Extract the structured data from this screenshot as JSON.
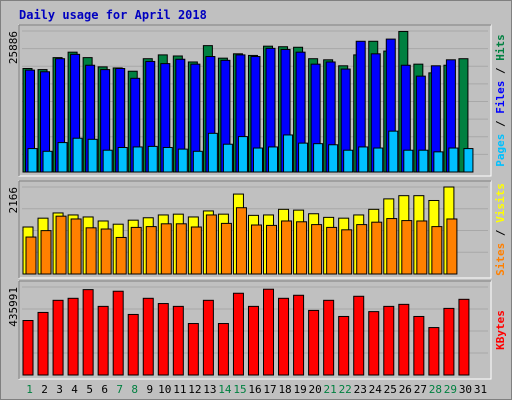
{
  "chart_data": {
    "type": "bar",
    "title": "Daily usage for April 2018",
    "days": [
      "1",
      "2",
      "3",
      "4",
      "5",
      "6",
      "7",
      "8",
      "9",
      "10",
      "11",
      "12",
      "13",
      "14",
      "15",
      "16",
      "17",
      "18",
      "19",
      "20",
      "21",
      "22",
      "23",
      "24",
      "25",
      "26",
      "27",
      "28",
      "29",
      "30",
      "31"
    ],
    "weekend_days": [
      "1",
      "7",
      "8",
      "14",
      "15",
      "21",
      "22",
      "28",
      "29"
    ],
    "panels": [
      {
        "id": "top",
        "max_label": "25886",
        "max_value": 25886,
        "series": [
          {
            "name": "Hits",
            "color": "#008040",
            "values": [
              19000,
              18800,
              21000,
              22000,
              21000,
              19300,
              19100,
              18500,
              20800,
              21500,
              21300,
              20200,
              23200,
              20900,
              21700,
              21400,
              23100,
              23000,
              22900,
              20800,
              20600,
              19500,
              21500,
              24000,
              22200,
              25800,
              19800,
              18200,
              19600,
              20800,
              null
            ]
          },
          {
            "name": "Files",
            "color": "#0000ff",
            "values": [
              18700,
              18400,
              20800,
              21600,
              19600,
              18800,
              19000,
              17200,
              20300,
              19900,
              20700,
              19800,
              21200,
              20500,
              21500,
              21200,
              22700,
              22500,
              22000,
              19800,
              20200,
              18900,
              24000,
              21700,
              24400,
              19600,
              17600,
              19500,
              20600,
              null,
              null
            ]
          },
          {
            "name": "Pages",
            "color": "#00c0ff",
            "values": [
              4300,
              3800,
              5400,
              6200,
              6000,
              4000,
              4500,
              4600,
              4700,
              4500,
              4200,
              3800,
              7100,
              5100,
              6500,
              4400,
              4600,
              6800,
              5300,
              5200,
              5000,
              4000,
              4600,
              4400,
              7500,
              4000,
              4000,
              3700,
              4400,
              4300,
              null
            ]
          }
        ],
        "side_label_parts": [
          {
            "text": "Pages",
            "color": "#00c0ff"
          },
          {
            "text": " / ",
            "color": "#000000"
          },
          {
            "text": "Files",
            "color": "#0000ff"
          },
          {
            "text": " / ",
            "color": "#000000"
          },
          {
            "text": "Hits",
            "color": "#008040"
          }
        ]
      },
      {
        "id": "middle",
        "max_label": "2166",
        "max_value": 2166,
        "series": [
          {
            "name": "Visits",
            "color": "#ffff00",
            "values": [
              1170,
              1390,
              1520,
              1470,
              1420,
              1320,
              1240,
              1340,
              1400,
              1470,
              1490,
              1420,
              1570,
              1490,
              1990,
              1460,
              1470,
              1610,
              1590,
              1500,
              1410,
              1390,
              1470,
              1610,
              1870,
              1950,
              1950,
              1830,
              2166,
              null,
              null
            ]
          },
          {
            "name": "Sites",
            "color": "#ff8000",
            "values": [
              920,
              1080,
              1440,
              1370,
              1150,
              1120,
              910,
              1160,
              1180,
              1250,
              1250,
              1170,
              1470,
              1260,
              1650,
              1220,
              1210,
              1320,
              1300,
              1230,
              1160,
              1100,
              1230,
              1290,
              1380,
              1330,
              1320,
              1180,
              1370,
              null,
              null
            ]
          }
        ],
        "side_label_parts": [
          {
            "text": "Sites",
            "color": "#ff8000"
          },
          {
            "text": " / ",
            "color": "#000000"
          },
          {
            "text": "Visits",
            "color": "#ffff00"
          }
        ]
      },
      {
        "id": "bottom",
        "max_label": "435991",
        "max_value": 435991,
        "series": [
          {
            "name": "KBytes",
            "color": "#ff0000",
            "values": [
              270000,
              310000,
              370000,
              380000,
              423000,
              340000,
              415000,
              300000,
              380000,
              354000,
              340000,
              255000,
              370000,
              255000,
              405000,
              340000,
              425000,
              380000,
              395000,
              320000,
              370000,
              290000,
              390000,
              314000,
              340000,
              350000,
              290000,
              235000,
              330000,
              375000,
              null
            ]
          }
        ],
        "side_label_parts": [
          {
            "text": "KBytes",
            "color": "#ff0000"
          }
        ]
      }
    ],
    "grid": true
  }
}
